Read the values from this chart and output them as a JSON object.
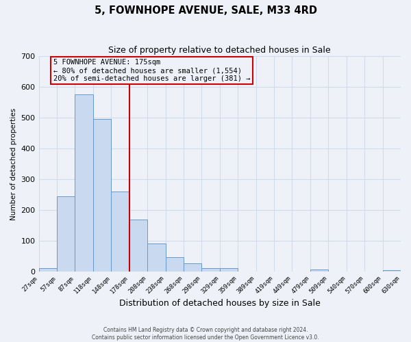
{
  "title": "5, FOWNHOPE AVENUE, SALE, M33 4RD",
  "subtitle": "Size of property relative to detached houses in Sale",
  "xlabel": "Distribution of detached houses by size in Sale",
  "ylabel": "Number of detached properties",
  "bar_heights": [
    12,
    245,
    575,
    495,
    260,
    170,
    92,
    48,
    27,
    13,
    13,
    0,
    0,
    0,
    0,
    7,
    0,
    0,
    0,
    5
  ],
  "tick_labels": [
    "27sqm",
    "57sqm",
    "87sqm",
    "118sqm",
    "148sqm",
    "178sqm",
    "208sqm",
    "238sqm",
    "268sqm",
    "298sqm",
    "329sqm",
    "359sqm",
    "389sqm",
    "419sqm",
    "449sqm",
    "479sqm",
    "509sqm",
    "540sqm",
    "570sqm",
    "600sqm",
    "630sqm"
  ],
  "bar_color": "#c9d9f0",
  "bar_edge_color": "#6699cc",
  "vline_color": "#cc0000",
  "vline_index": 5,
  "ylim": [
    0,
    700
  ],
  "yticks": [
    0,
    100,
    200,
    300,
    400,
    500,
    600,
    700
  ],
  "annotation_title": "5 FOWNHOPE AVENUE: 175sqm",
  "annotation_line1": "← 80% of detached houses are smaller (1,554)",
  "annotation_line2": "20% of semi-detached houses are larger (381) →",
  "annotation_box_color": "#cc0000",
  "footer1": "Contains HM Land Registry data © Crown copyright and database right 2024.",
  "footer2": "Contains public sector information licensed under the Open Government Licence v3.0.",
  "grid_color": "#d0daea",
  "bg_color": "#eef2f8",
  "n_bins": 20,
  "title_fontsize": 10.5,
  "subtitle_fontsize": 9,
  "xlabel_fontsize": 9,
  "ylabel_fontsize": 7.5,
  "tick_fontsize": 6.5,
  "ytick_fontsize": 8,
  "footer_fontsize": 5.5,
  "ann_fontsize": 7.5
}
